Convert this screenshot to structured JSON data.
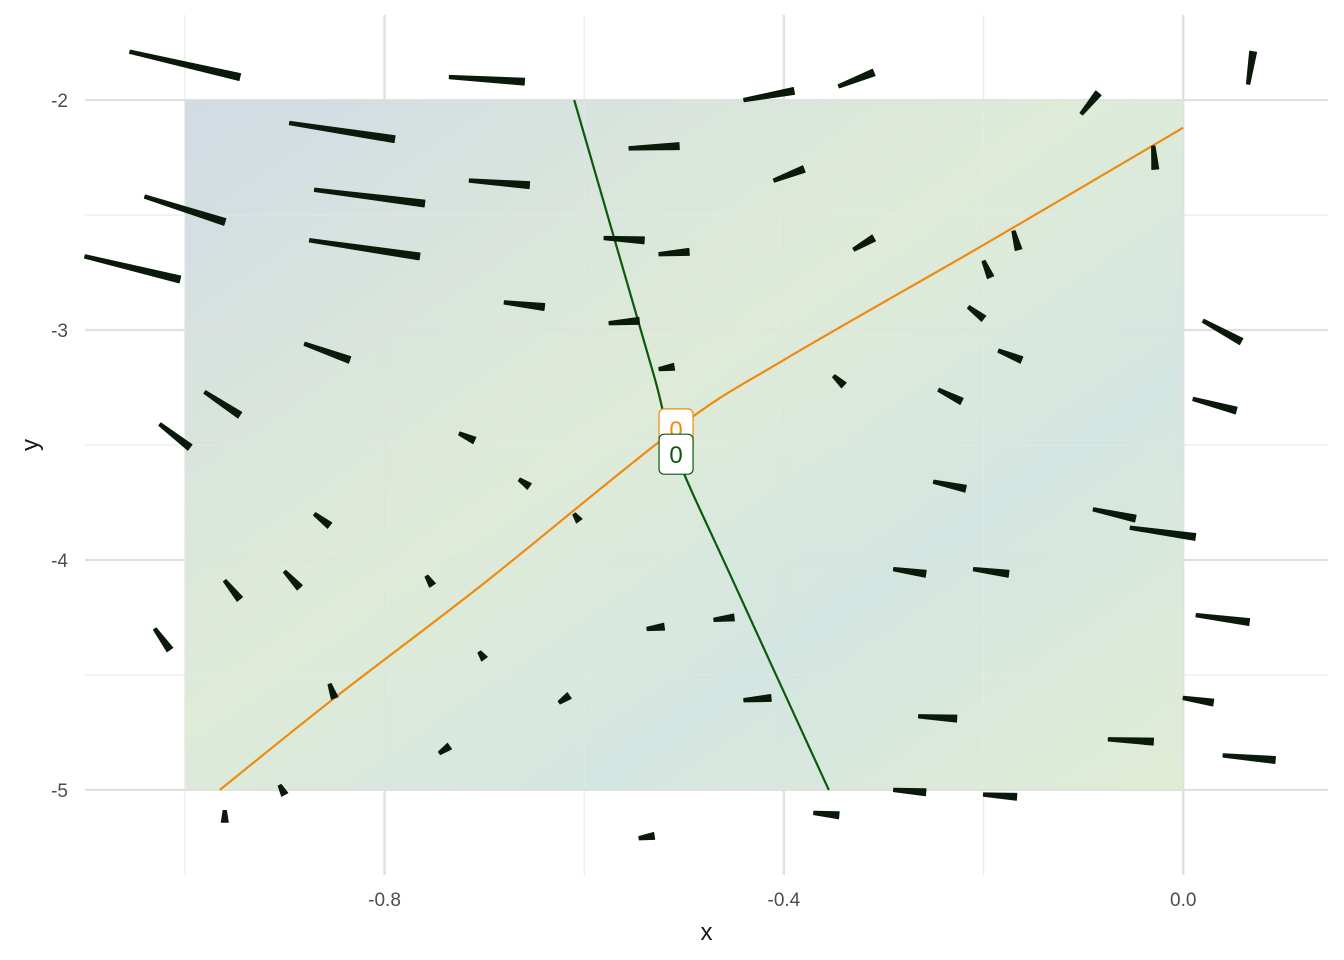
{
  "chart_data": {
    "type": "vector_field",
    "xlabel": "x",
    "ylabel": "y",
    "xlim": [
      -1.1,
      0.145
    ],
    "ylim": [
      -5.37,
      -1.63
    ],
    "x_ticks": [
      -0.8,
      -0.4,
      0.0
    ],
    "x_tick_labels": [
      "-0.8",
      "-0.4",
      "0.0"
    ],
    "x_minor_ticks": [
      -1.0,
      -0.6,
      -0.2
    ],
    "y_ticks": [
      -5,
      -4,
      -3,
      -2
    ],
    "y_tick_labels": [
      "-5",
      "-4",
      "-3",
      "-2"
    ],
    "y_minor_ticks": [
      -4.5,
      -3.5,
      -2.5
    ],
    "grid": true,
    "region": {
      "x": [
        -1.0,
        0.0
      ],
      "y": [
        -5.0,
        -2.0
      ],
      "gradient_colors": [
        "#d2dbe4",
        "#dfebd8",
        "#d4e6e2",
        "#e1ecd4"
      ]
    },
    "nullclines": [
      {
        "color": "#ef8a0c",
        "label": "0",
        "label_at": [
          -0.508,
          -3.43
        ],
        "points": [
          [
            -0.965,
            -5.0
          ],
          [
            -0.85,
            -4.6
          ],
          [
            -0.7,
            -4.1
          ],
          [
            -0.508,
            -3.43
          ],
          [
            -0.4,
            -3.13
          ],
          [
            -0.2,
            -2.63
          ],
          [
            0.0,
            -2.12
          ]
        ]
      },
      {
        "color": "#0b5a0b",
        "label": "0",
        "label_at": [
          -0.508,
          -3.54
        ],
        "points": [
          [
            -0.61,
            -2.0
          ],
          [
            -0.57,
            -2.6
          ],
          [
            -0.53,
            -3.2
          ],
          [
            -0.508,
            -3.54
          ],
          [
            -0.45,
            -4.1
          ],
          [
            -0.355,
            -5.0
          ]
        ]
      }
    ],
    "arrow_color": "#0a1a0a",
    "segments": [
      [
        -1.055,
        -1.79,
        -0.945,
        -1.9
      ],
      [
        -0.735,
        -1.9,
        -0.66,
        -1.92
      ],
      [
        -0.44,
        -2.0,
        -0.39,
        -1.96
      ],
      [
        -0.345,
        -1.94,
        -0.31,
        -1.88
      ],
      [
        -0.102,
        -2.06,
        -0.085,
        -1.97
      ],
      [
        0.065,
        -1.93,
        0.07,
        -1.79
      ],
      [
        -0.895,
        -2.1,
        -0.79,
        -2.17
      ],
      [
        -0.555,
        -2.21,
        -0.505,
        -2.2
      ],
      [
        -0.03,
        -2.2,
        -0.028,
        -2.3
      ],
      [
        -0.87,
        -2.39,
        -0.76,
        -2.45
      ],
      [
        -0.715,
        -2.35,
        -0.655,
        -2.37
      ],
      [
        -0.41,
        -2.35,
        -0.38,
        -2.3
      ],
      [
        -1.04,
        -2.42,
        -0.96,
        -2.53
      ],
      [
        -0.58,
        -2.6,
        -0.54,
        -2.61
      ],
      [
        -0.875,
        -2.61,
        -0.765,
        -2.68
      ],
      [
        -0.525,
        -2.67,
        -0.495,
        -2.66
      ],
      [
        -0.33,
        -2.65,
        -0.31,
        -2.6
      ],
      [
        -0.17,
        -2.57,
        -0.165,
        -2.65
      ],
      [
        -0.2,
        -2.7,
        -0.193,
        -2.77
      ],
      [
        -1.1,
        -2.68,
        -1.005,
        -2.78
      ],
      [
        -0.68,
        -2.88,
        -0.64,
        -2.9
      ],
      [
        -0.575,
        -2.97,
        -0.545,
        -2.96
      ],
      [
        -0.215,
        -2.9,
        -0.2,
        -2.95
      ],
      [
        0.02,
        -2.96,
        0.058,
        -3.05
      ],
      [
        -0.88,
        -3.06,
        -0.835,
        -3.13
      ],
      [
        -0.185,
        -3.09,
        -0.162,
        -3.13
      ],
      [
        -0.525,
        -3.17,
        -0.51,
        -3.16
      ],
      [
        -0.35,
        -3.2,
        -0.34,
        -3.24
      ],
      [
        -0.245,
        -3.26,
        -0.222,
        -3.31
      ],
      [
        -0.98,
        -3.27,
        -0.945,
        -3.37
      ],
      [
        0.01,
        -3.3,
        0.053,
        -3.35
      ],
      [
        -1.025,
        -3.41,
        -0.995,
        -3.51
      ],
      [
        -0.725,
        -3.45,
        -0.71,
        -3.48
      ],
      [
        -0.665,
        -3.65,
        -0.655,
        -3.68
      ],
      [
        -0.25,
        -3.66,
        -0.218,
        -3.69
      ],
      [
        -0.87,
        -3.8,
        -0.855,
        -3.85
      ],
      [
        -0.61,
        -3.8,
        -0.605,
        -3.83
      ],
      [
        -0.09,
        -3.78,
        -0.048,
        -3.82
      ],
      [
        -0.053,
        -3.86,
        0.012,
        -3.9
      ],
      [
        -0.96,
        -4.09,
        -0.945,
        -4.17
      ],
      [
        -0.9,
        -4.05,
        -0.885,
        -4.12
      ],
      [
        -0.758,
        -4.07,
        -0.752,
        -4.11
      ],
      [
        -0.29,
        -4.04,
        -0.258,
        -4.06
      ],
      [
        -0.21,
        -4.04,
        -0.175,
        -4.06
      ],
      [
        -1.03,
        -4.3,
        -1.015,
        -4.39
      ],
      [
        0.013,
        -4.24,
        0.066,
        -4.27
      ],
      [
        -0.537,
        -4.3,
        -0.52,
        -4.29
      ],
      [
        -0.47,
        -4.26,
        -0.45,
        -4.25
      ],
      [
        -0.705,
        -4.4,
        -0.7,
        -4.43
      ],
      [
        -0.855,
        -4.54,
        -0.85,
        -4.6
      ],
      [
        -0.625,
        -4.62,
        -0.615,
        -4.59
      ],
      [
        -0.44,
        -4.61,
        -0.413,
        -4.6
      ],
      [
        0.0,
        -4.6,
        0.03,
        -4.62
      ],
      [
        -0.265,
        -4.68,
        -0.227,
        -4.69
      ],
      [
        -0.075,
        -4.78,
        -0.03,
        -4.79
      ],
      [
        -0.745,
        -4.84,
        -0.735,
        -4.81
      ],
      [
        0.04,
        -4.85,
        0.092,
        -4.87
      ],
      [
        -0.905,
        -4.98,
        -0.9,
        -5.02
      ],
      [
        -0.96,
        -5.09,
        -0.96,
        -5.14
      ],
      [
        -0.37,
        -5.1,
        -0.345,
        -5.11
      ],
      [
        -0.29,
        -5.0,
        -0.258,
        -5.01
      ],
      [
        -0.2,
        -5.02,
        -0.167,
        -5.03
      ],
      [
        -0.545,
        -5.21,
        -0.53,
        -5.2
      ]
    ]
  }
}
